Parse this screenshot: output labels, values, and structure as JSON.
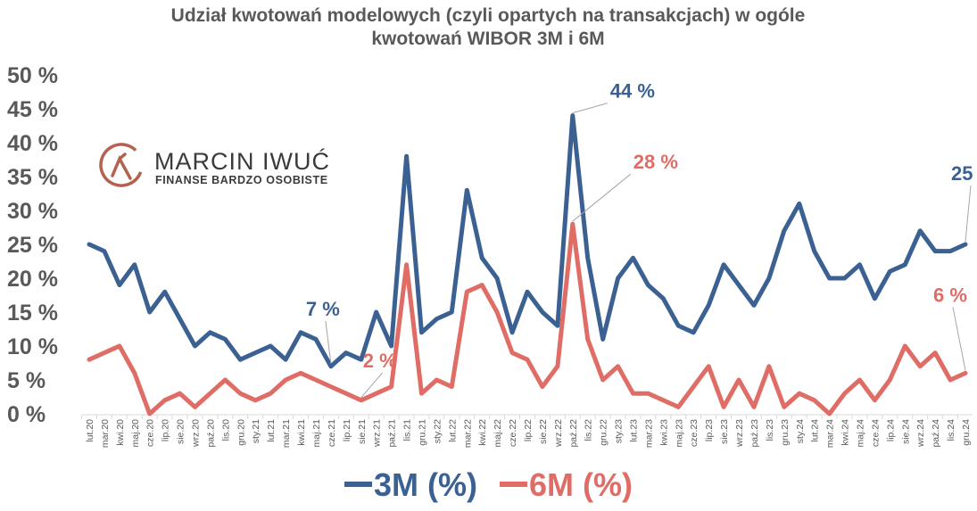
{
  "chart_data": {
    "type": "line",
    "title_line1": "Udział kwotowań modelowych (czyli opartych na transakcjach) w ogóle",
    "title_line2": "kwotowań WIBOR 3M i 6M",
    "ylim": [
      0,
      50
    ],
    "yticks": [
      "0 %",
      "5 %",
      "10 %",
      "15 %",
      "20 %",
      "25 %",
      "30 %",
      "35 %",
      "40 %",
      "45 %",
      "50 %"
    ],
    "grid": false,
    "legend_position": "bottom",
    "categories": [
      "lut.20",
      "mar.20",
      "kwi.20",
      "maj.20",
      "cze.20",
      "lip.20",
      "sie.20",
      "wrz.20",
      "paź.20",
      "lis.20",
      "gru.20",
      "sty.21",
      "lut.21",
      "mar.21",
      "kwi.21",
      "maj.21",
      "cze.21",
      "lip.21",
      "sie.21",
      "wrz.21",
      "paź.21",
      "lis.21",
      "gru.21",
      "sty.22",
      "lut.22",
      "mar.22",
      "kwi.22",
      "maj.22",
      "cze.22",
      "lip.22",
      "sie.22",
      "wrz.22",
      "paź.22",
      "lis.22",
      "gru.22",
      "sty.23",
      "lut.23",
      "mar.23",
      "kwi.23",
      "maj.23",
      "cze.23",
      "lip.23",
      "sie.23",
      "wrz.23",
      "paź.23",
      "lis.23",
      "gru.23",
      "sty.24",
      "lut.24",
      "mar.24",
      "kwi.24",
      "maj.24",
      "cze.24",
      "lip.24",
      "sie.24",
      "wrz.24",
      "paź.24",
      "lis.24",
      "gru.24"
    ],
    "series": [
      {
        "name": "3M (%)",
        "color": "#3b6193",
        "values": [
          25,
          24,
          19,
          22,
          15,
          18,
          14,
          10,
          12,
          11,
          8,
          9,
          10,
          8,
          12,
          11,
          7,
          9,
          8,
          15,
          10,
          38,
          12,
          14,
          15,
          33,
          23,
          20,
          12,
          18,
          15,
          13,
          44,
          23,
          11,
          20,
          23,
          19,
          17,
          13,
          12,
          16,
          22,
          19,
          16,
          20,
          27,
          31,
          24,
          20,
          20,
          22,
          17,
          21,
          22,
          27,
          24,
          24,
          25
        ]
      },
      {
        "name": "6M (%)",
        "color": "#e06c66",
        "values": [
          8,
          9,
          10,
          6,
          0,
          2,
          3,
          1,
          3,
          5,
          3,
          2,
          3,
          5,
          6,
          5,
          4,
          3,
          2,
          3,
          4,
          22,
          3,
          5,
          4,
          18,
          19,
          15,
          9,
          8,
          4,
          7,
          28,
          11,
          5,
          7,
          3,
          3,
          2,
          1,
          4,
          7,
          1,
          5,
          1,
          7,
          1,
          3,
          2,
          0,
          3,
          5,
          2,
          5,
          10,
          7,
          9,
          5,
          6
        ]
      }
    ],
    "annotations": [
      {
        "text": "7 %",
        "series": 0,
        "category": "cze.21"
      },
      {
        "text": "2 %",
        "series": 1,
        "category": "sie.21"
      },
      {
        "text": "44 %",
        "series": 0,
        "category": "paź.22"
      },
      {
        "text": "28 %",
        "series": 1,
        "category": "paź.22"
      },
      {
        "text": "25 %",
        "series": 0,
        "category": "gru.24"
      },
      {
        "text": "6 %",
        "series": 1,
        "category": "gru.24"
      }
    ]
  },
  "logo": {
    "name": "MARCIN IWUĆ",
    "tagline": "FINANSE BARDZO OSOBISTE",
    "color": "#b5614f"
  }
}
